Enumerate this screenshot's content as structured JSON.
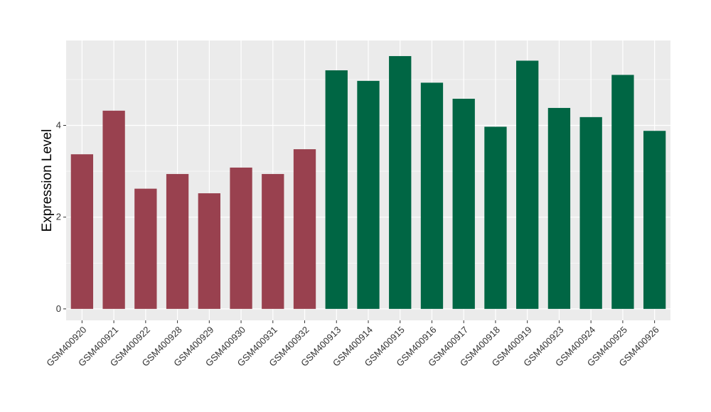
{
  "chart_data": {
    "type": "bar",
    "title": "",
    "xlabel": "",
    "ylabel": "Expression Level",
    "ylim": [
      -0.25,
      5.85
    ],
    "yticks": [
      0,
      2,
      4
    ],
    "grid": true,
    "legend": "none",
    "categories": [
      "GSM400920",
      "GSM400921",
      "GSM400922",
      "GSM400928",
      "GSM400929",
      "GSM400930",
      "GSM400931",
      "GSM400932",
      "GSM400913",
      "GSM400914",
      "GSM400915",
      "GSM400916",
      "GSM400917",
      "GSM400918",
      "GSM400919",
      "GSM400923",
      "GSM400924",
      "GSM400925",
      "GSM400926"
    ],
    "values": [
      3.37,
      4.32,
      2.62,
      2.94,
      2.52,
      3.08,
      2.94,
      3.48,
      5.2,
      4.97,
      5.51,
      4.93,
      4.58,
      3.97,
      5.41,
      4.38,
      4.18,
      5.1,
      3.88
    ],
    "colors": [
      "#99414f",
      "#99414f",
      "#99414f",
      "#99414f",
      "#99414f",
      "#99414f",
      "#99414f",
      "#99414f",
      "#006644",
      "#006644",
      "#006644",
      "#006644",
      "#006644",
      "#006644",
      "#006644",
      "#006644",
      "#006644",
      "#006644",
      "#006644"
    ],
    "panel_background": "#ebebeb",
    "grid_color": "#ffffff"
  }
}
